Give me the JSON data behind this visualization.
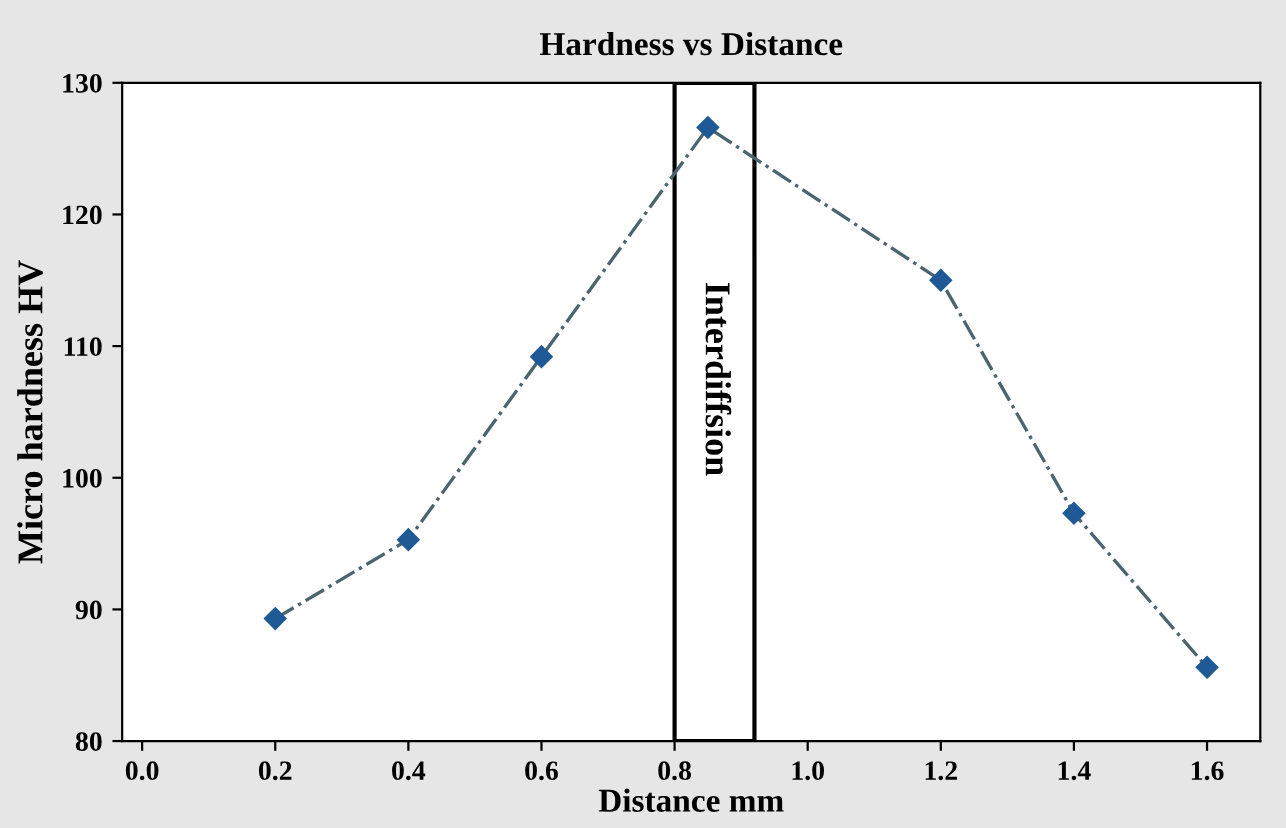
{
  "chart_data": {
    "type": "line",
    "title": "Hardness vs Distance",
    "xlabel": "Distance mm",
    "ylabel": "Micro hardness HV",
    "x": [
      0.2,
      0.4,
      0.6,
      0.85,
      1.2,
      1.4,
      1.6
    ],
    "series": [
      {
        "color": "#1f5a96",
        "values": [
          89.3,
          95.3,
          109.2,
          126.6,
          115.0,
          97.3,
          85.6
        ]
      }
    ],
    "xlim": [
      -0.03,
      1.68
    ],
    "ylim": [
      80,
      130
    ],
    "xticks": [
      {
        "value": 0,
        "label": "0.0"
      },
      {
        "value": 0.2,
        "label": "0.2"
      },
      {
        "value": 0.4,
        "label": "0.4"
      },
      {
        "value": 0.6,
        "label": "0.6"
      },
      {
        "value": 0.8,
        "label": "0.8"
      },
      {
        "value": 1.0,
        "label": "1.0"
      },
      {
        "value": 1.2,
        "label": "1.2"
      },
      {
        "value": 1.4,
        "label": "1.4"
      },
      {
        "value": 1.6,
        "label": "1.6"
      }
    ],
    "yticks": [
      80,
      90,
      100,
      110,
      120,
      130
    ],
    "bands": [
      {
        "axis": "x",
        "from": 0.8,
        "to": 0.92,
        "label": "Interdiffsion",
        "color": "#ffffff"
      }
    ],
    "marker": "diamond",
    "line_style": "dashdot",
    "grid": false,
    "legend": false
  }
}
